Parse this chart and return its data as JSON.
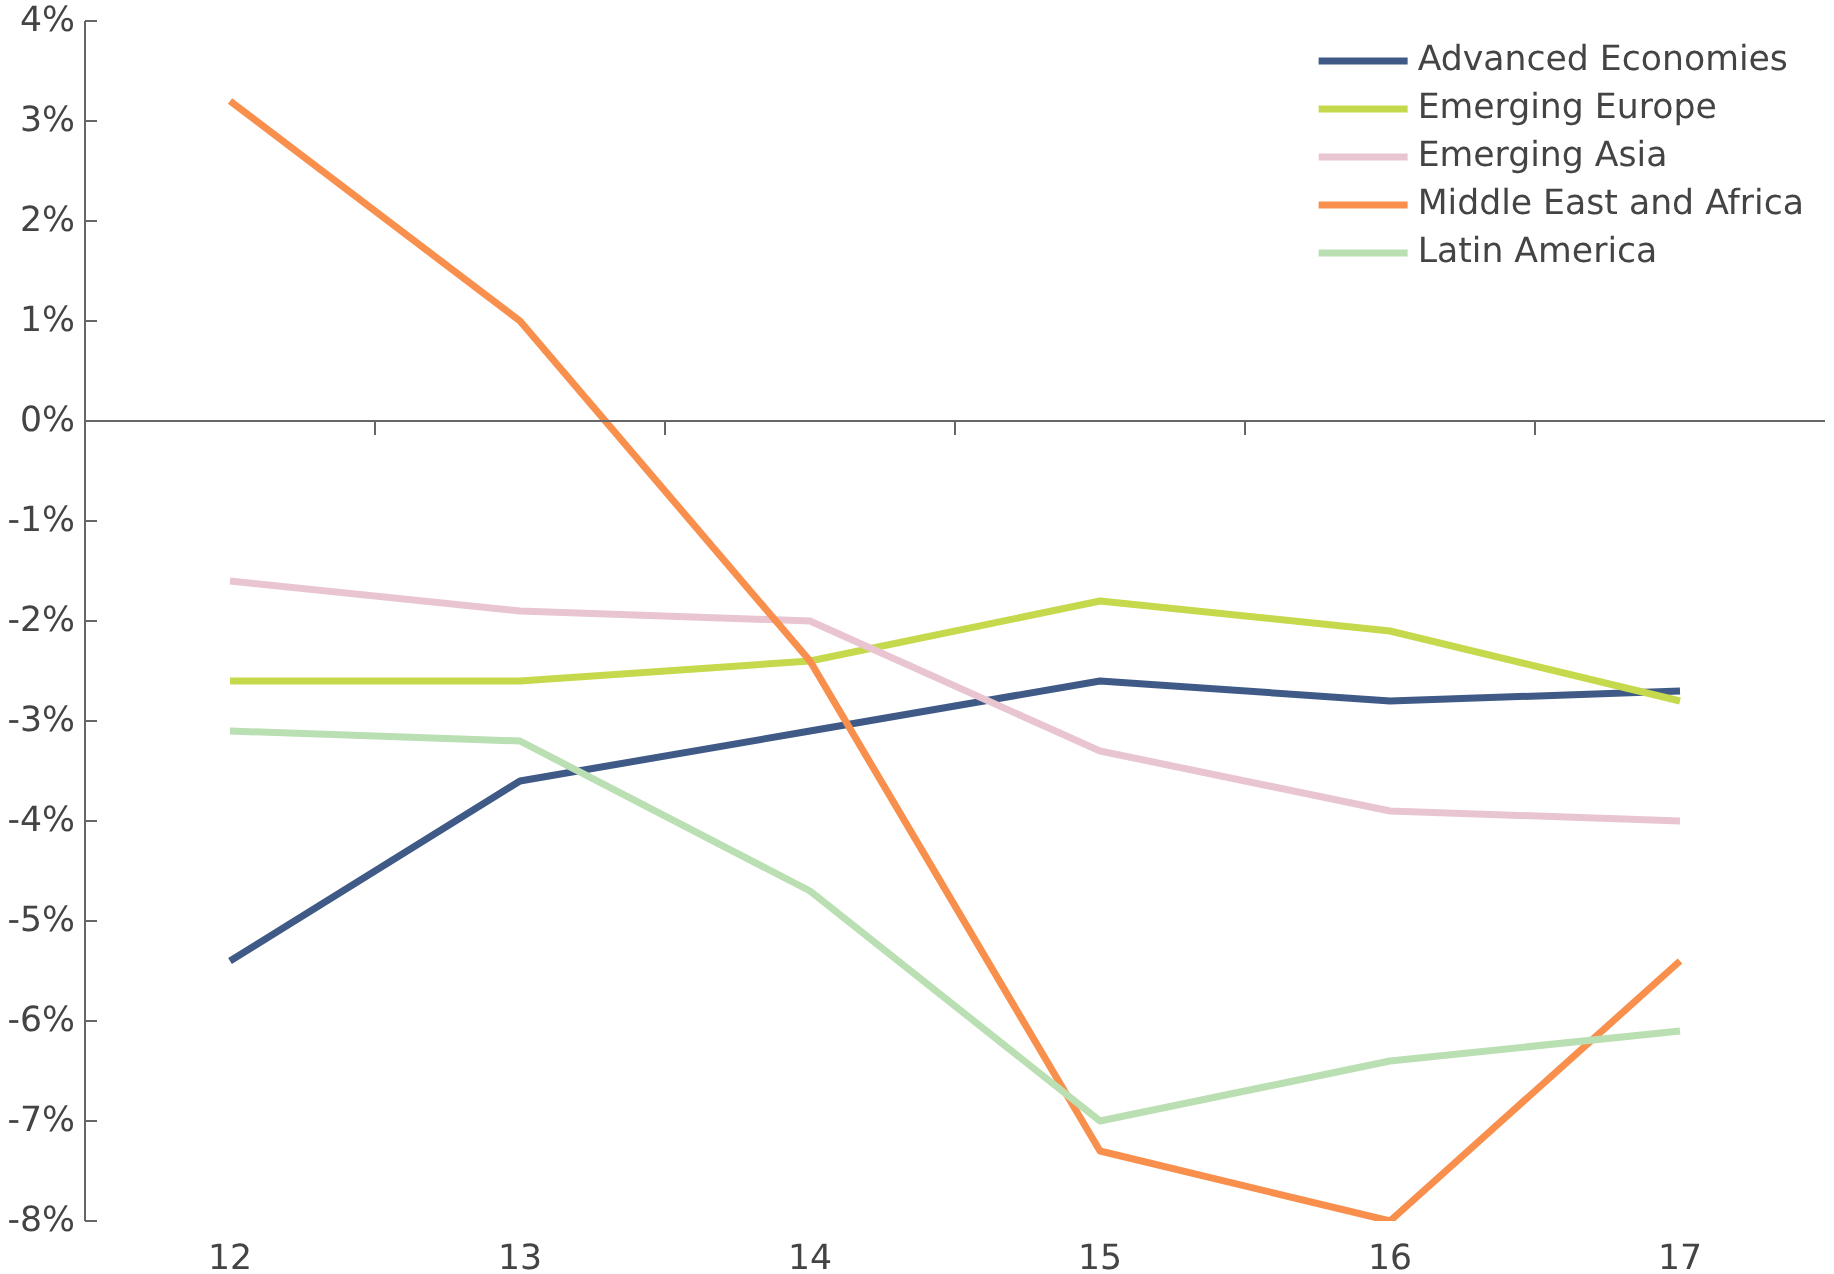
{
  "chart_data": {
    "type": "line",
    "categories": [
      "12",
      "13",
      "14",
      "15",
      "16",
      "17"
    ],
    "series": [
      {
        "name": "Advanced Economies",
        "color": "#3f5a86",
        "values": [
          -5.4,
          -3.6,
          -3.1,
          -2.6,
          -2.8,
          -2.7
        ]
      },
      {
        "name": "Emerging Europe",
        "color": "#c6d94c",
        "values": [
          -2.6,
          -2.6,
          -2.4,
          -1.8,
          -2.1,
          -2.8
        ]
      },
      {
        "name": "Emerging Asia",
        "color": "#e9c5d1",
        "values": [
          -1.6,
          -1.9,
          -2.0,
          -3.3,
          -3.9,
          -4.0
        ]
      },
      {
        "name": "Middle East and Africa",
        "color": "#f98f4c",
        "values": [
          3.2,
          1.0,
          -2.4,
          -7.3,
          -8.0,
          -5.4
        ]
      },
      {
        "name": "Latin America",
        "color": "#badfb2",
        "values": [
          -3.1,
          -3.2,
          -4.7,
          -7.0,
          -6.4,
          -6.1
        ]
      }
    ],
    "ylim": [
      -8,
      4
    ],
    "yticks": [
      {
        "value": -8,
        "label": "-8%"
      },
      {
        "value": -7,
        "label": "-7%"
      },
      {
        "value": -6,
        "label": "-6%"
      },
      {
        "value": -5,
        "label": "-5%"
      },
      {
        "value": -4,
        "label": "-4%"
      },
      {
        "value": -3,
        "label": "-3%"
      },
      {
        "value": -2,
        "label": "-2%"
      },
      {
        "value": -1,
        "label": "-1%"
      },
      {
        "value": 0,
        "label": "0%"
      },
      {
        "value": 1,
        "label": "1%"
      },
      {
        "value": 2,
        "label": "2%"
      },
      {
        "value": 3,
        "label": "3%"
      },
      {
        "value": 4,
        "label": "4%"
      }
    ],
    "legend": "top right",
    "marker": "none",
    "line_style": "solid"
  }
}
